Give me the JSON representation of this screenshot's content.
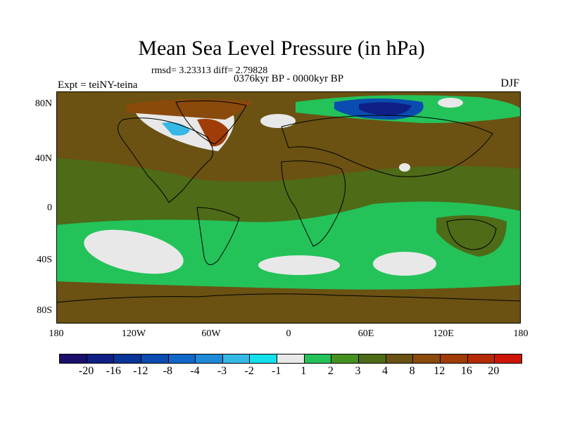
{
  "title": "Mean Sea Level Pressure (in hPa)",
  "stats": "rmsd= 3.23313 diff= 2.79828",
  "period": "0376kyr BP - 0000kyr BP",
  "experiment": "Expt = teiNY-teina",
  "season": "DJF",
  "lat_labels": [
    "80N",
    "40N",
    "0",
    "40S",
    "80S"
  ],
  "lon_labels": [
    "180",
    "120W",
    "60W",
    "0",
    "60E",
    "120E",
    "180"
  ],
  "legend": {
    "colors": [
      "#1a0f6b",
      "#101f85",
      "#0a3598",
      "#0a4cb0",
      "#1068c8",
      "#1e8ad8",
      "#36b8e6",
      "#14e0ec",
      "#e8e8e8",
      "#23c35a",
      "#45911f",
      "#4e6b17",
      "#6b5212",
      "#8a4a0b",
      "#a03c08",
      "#b52b05",
      "#cc1505"
    ],
    "labels": [
      "-20",
      "-16",
      "-12",
      "-8",
      "-4",
      "-3",
      "-2",
      "-1",
      "1",
      "2",
      "3",
      "4",
      "8",
      "12",
      "16",
      "20"
    ]
  },
  "map_colors": {
    "brown": "#6b5212",
    "olive": "#4e6b17",
    "mid_green": "#45911f",
    "green": "#23c35a",
    "white": "#e8e8e8",
    "cyan": "#36b8e6",
    "blue": "#0a4cb0",
    "dark_blue": "#101f85",
    "rust": "#8a4a0b",
    "red": "#a03c08"
  }
}
